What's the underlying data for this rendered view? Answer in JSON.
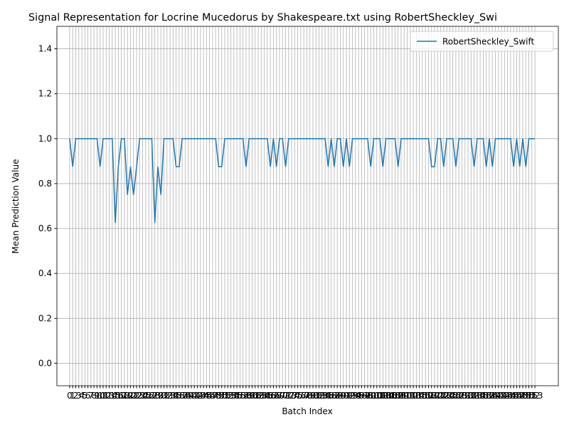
{
  "chart_data": {
    "type": "line",
    "title": "Signal Representation for Locrine Mucedorus by Shakespeare.txt using RobertSheckley_Swi",
    "xlabel": "Batch Index",
    "ylabel": "Mean Prediction Value",
    "x": [
      0,
      1,
      2,
      3,
      4,
      5,
      6,
      7,
      8,
      9,
      10,
      11,
      12,
      13,
      14,
      15,
      16,
      17,
      18,
      19,
      20,
      21,
      22,
      23,
      24,
      25,
      26,
      27,
      28,
      29,
      30,
      31,
      32,
      33,
      34,
      35,
      36,
      37,
      38,
      39,
      40,
      41,
      42,
      43,
      44,
      45,
      46,
      47,
      48,
      49,
      50,
      51,
      52,
      53,
      54,
      55,
      56,
      57,
      58,
      59,
      60,
      61,
      62,
      63,
      64,
      65,
      66,
      67,
      68,
      69,
      70,
      71,
      72,
      73,
      74,
      75,
      76,
      77,
      78,
      79,
      80,
      81,
      82,
      83,
      84,
      85,
      86,
      87,
      88,
      89,
      90,
      91,
      92,
      93,
      94,
      95,
      96,
      97,
      98,
      99,
      100,
      101,
      102,
      103,
      104,
      105,
      106,
      107,
      108,
      109,
      110,
      111,
      112,
      113,
      114,
      115,
      116,
      117,
      118,
      119,
      120,
      121,
      122,
      123,
      124,
      125,
      126,
      127,
      128,
      129,
      130,
      131,
      132,
      133,
      134,
      135,
      136,
      137,
      138,
      139,
      140,
      141,
      142,
      143,
      144,
      145,
      146,
      147,
      148,
      149,
      150,
      151,
      152,
      153
    ],
    "series": [
      {
        "name": "RobertSheckley_Swift",
        "color": "#1f77b4",
        "values": [
          1,
          0.875,
          1,
          1,
          1,
          1,
          1,
          1,
          1,
          1,
          0.875,
          1,
          1,
          1,
          1,
          0.625,
          0.875,
          1,
          1,
          0.75,
          0.875,
          0.75,
          0.875,
          1,
          1,
          1,
          1,
          1,
          0.625,
          0.875,
          0.75,
          1,
          1,
          1,
          1,
          0.875,
          0.875,
          1,
          1,
          1,
          1,
          1,
          1,
          1,
          1,
          1,
          1,
          1,
          1,
          0.875,
          0.875,
          1,
          1,
          1,
          1,
          1,
          1,
          1,
          0.875,
          1,
          1,
          1,
          1,
          1,
          1,
          1,
          0.875,
          1,
          0.875,
          1,
          1,
          0.875,
          1,
          1,
          1,
          1,
          1,
          1,
          1,
          1,
          1,
          1,
          1,
          1,
          1,
          0.875,
          1,
          0.875,
          1,
          1,
          0.875,
          1,
          0.875,
          1,
          1,
          1,
          1,
          1,
          1,
          0.875,
          1,
          1,
          1,
          0.875,
          1,
          1,
          1,
          1,
          0.875,
          1,
          1,
          1,
          1,
          1,
          1,
          1,
          1,
          1,
          1,
          0.875,
          0.875,
          1,
          1,
          0.875,
          1,
          1,
          1,
          0.875,
          1,
          1,
          1,
          1,
          1,
          0.875,
          1,
          1,
          1,
          0.875,
          1,
          0.875,
          1,
          1,
          1,
          1,
          1,
          1,
          0.875,
          1,
          0.875,
          1,
          0.875,
          1,
          1,
          1
        ]
      }
    ],
    "xlim": [
      -4.2,
      160.7
    ],
    "xticks": [
      0,
      1,
      2,
      3,
      4,
      5,
      6,
      7,
      8,
      9,
      10,
      11,
      12,
      13,
      14,
      15,
      16,
      17,
      18,
      19,
      20,
      21,
      22,
      23,
      24,
      25,
      26,
      27,
      28,
      29,
      30,
      31,
      32,
      33,
      34,
      35,
      36,
      37,
      38,
      39,
      40,
      41,
      42,
      43,
      44,
      45,
      46,
      47,
      48,
      49,
      50,
      51,
      52,
      53,
      54,
      55,
      56,
      57,
      58,
      59,
      60,
      61,
      62,
      63,
      64,
      65,
      66,
      67,
      68,
      69,
      70,
      71,
      72,
      73,
      74,
      75,
      76,
      77,
      78,
      79,
      80,
      81,
      82,
      83,
      84,
      85,
      86,
      87,
      88,
      89,
      90,
      91,
      92,
      93,
      94,
      95,
      96,
      97,
      98,
      99,
      100,
      101,
      102,
      103,
      104,
      105,
      106,
      107,
      108,
      109,
      110,
      111,
      112,
      113,
      114,
      115,
      116,
      117,
      118,
      119,
      120,
      121,
      122,
      123,
      124,
      125,
      126,
      127,
      128,
      129,
      130,
      131,
      132,
      133,
      134,
      135,
      136,
      137,
      138,
      139,
      140,
      141,
      142,
      143,
      144,
      145,
      146,
      147,
      148,
      149,
      150,
      151,
      152,
      153
    ],
    "ylim": [
      -0.1,
      1.5
    ],
    "yticks": [
      {
        "value": 0,
        "label": "0.0"
      },
      {
        "value": 0.2,
        "label": "0.2"
      },
      {
        "value": 0.4,
        "label": "0.4"
      },
      {
        "value": 0.6,
        "label": "0.6"
      },
      {
        "value": 0.8,
        "label": "0.8"
      },
      {
        "value": 1,
        "label": "1.0"
      },
      {
        "value": 1.2,
        "label": "1.2"
      },
      {
        "value": 1.4,
        "label": "1.4"
      }
    ],
    "grid": true,
    "legend": "upper right"
  }
}
